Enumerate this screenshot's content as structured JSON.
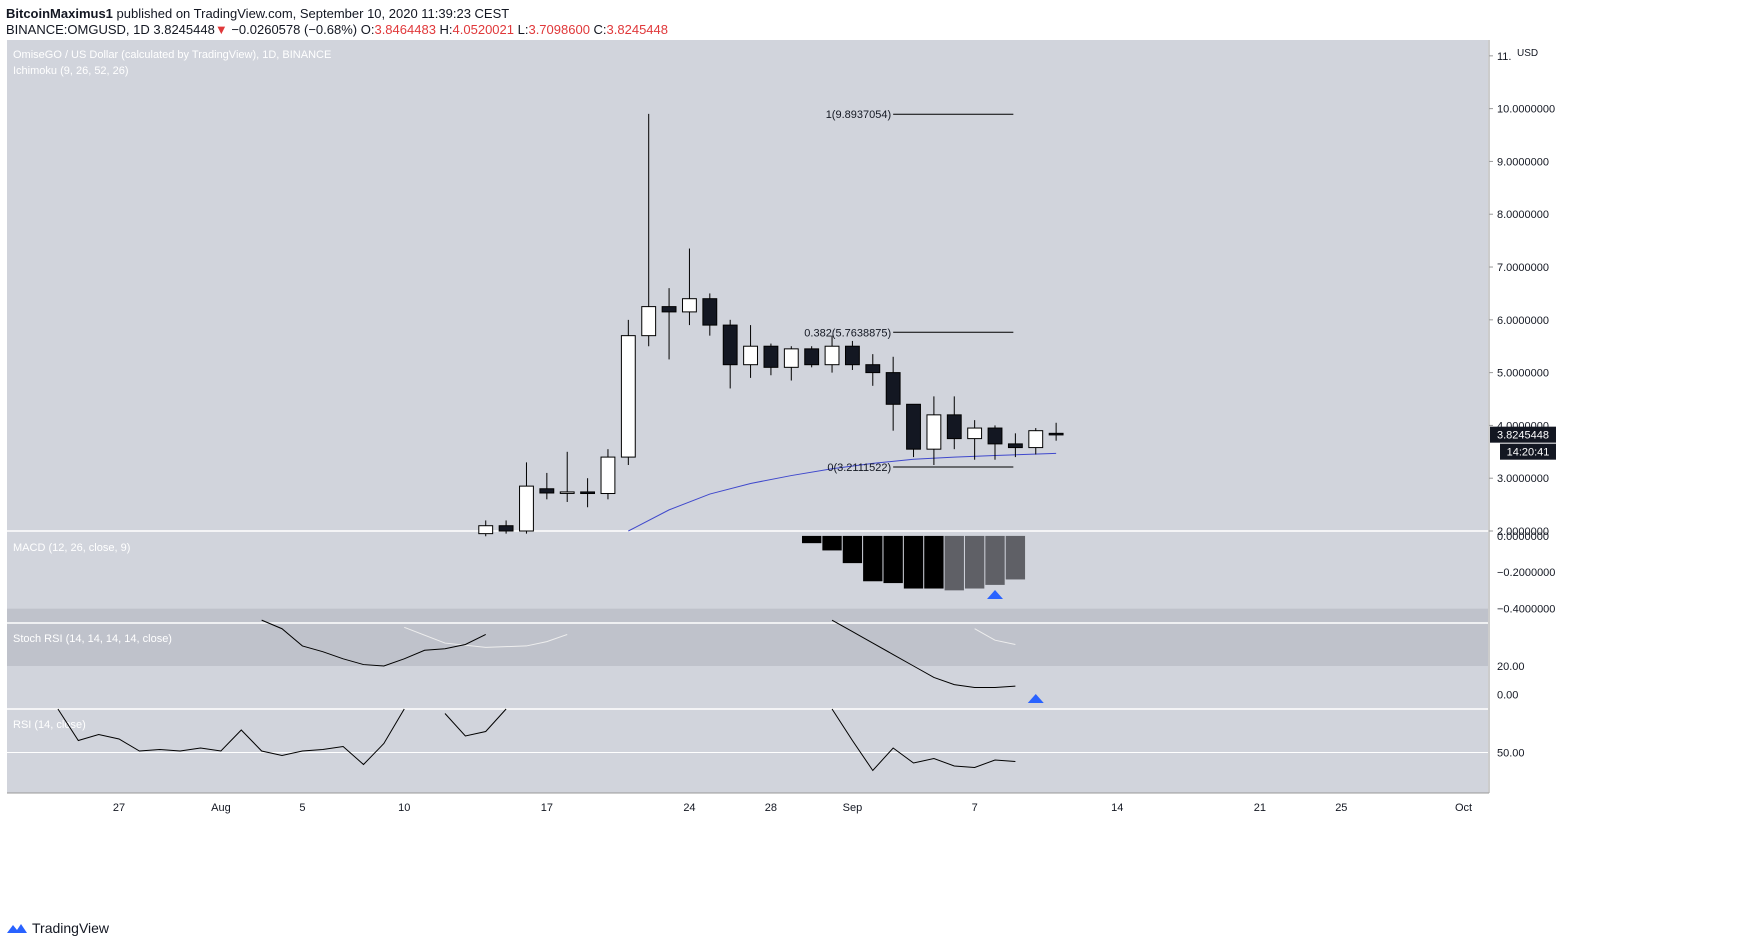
{
  "header": {
    "author": "BitcoinMaximus1",
    "published": "published on TradingView.com, September 10, 2020 11:39:23 CEST",
    "symbol": "BINANCE:OMGUSD, 1D",
    "last": "3.8245448",
    "arrow": "▼",
    "change": "−0.0260578 (−0.68%)",
    "o_label": "O:",
    "o": "3.8464483",
    "h_label": "H:",
    "h": "4.0520021",
    "l_label": "L:",
    "l": "3.7098600",
    "c_label": "C:",
    "c": "3.8245448"
  },
  "footer": {
    "brand": "TradingView",
    "icon": "tradingview-logo-icon"
  },
  "colors": {
    "pane_bg": "#d1d4dc",
    "up": "#ffffff",
    "down": "#131722",
    "ma": "#3f48cc",
    "marker": "#2962ff"
  },
  "chart_data": {
    "type": "candlestick",
    "title": "OmiseGO / US Dollar (calculated by TradingView), 1D, BINANCE",
    "indicator": "Ichimoku (9, 26, 52, 26)",
    "currency": "USD",
    "price_ticks": [
      "2.0000000",
      "3.0000000",
      "4.0000000",
      "5.0000000",
      "6.0000000",
      "7.0000000",
      "8.0000000",
      "9.0000000",
      "10.0000000",
      "11."
    ],
    "price_range": [
      2,
      11.3
    ],
    "x_tick_labels": [
      {
        "label": "27",
        "day": 27
      },
      {
        "label": "Aug",
        "day": 32
      },
      {
        "label": "5",
        "day": 36
      },
      {
        "label": "10",
        "day": 41
      },
      {
        "label": "17",
        "day": 48
      },
      {
        "label": "24",
        "day": 55
      },
      {
        "label": "28",
        "day": 59
      },
      {
        "label": "Sep",
        "day": 63
      },
      {
        "label": "7",
        "day": 69
      },
      {
        "label": "14",
        "day": 76
      },
      {
        "label": "21",
        "day": 83
      },
      {
        "label": "25",
        "day": 87
      },
      {
        "label": "Oct",
        "day": 93
      }
    ],
    "x_day_range": [
      21.5,
      94.2
    ],
    "candles": [
      {
        "day": 45,
        "o": 1.95,
        "h": 2.2,
        "l": 1.9,
        "c": 2.1
      },
      {
        "day": 46,
        "o": 2.1,
        "h": 2.2,
        "l": 1.95,
        "c": 2.0
      },
      {
        "day": 47,
        "o": 2.0,
        "h": 3.3,
        "l": 1.95,
        "c": 2.85
      },
      {
        "day": 48,
        "o": 2.8,
        "h": 3.1,
        "l": 2.6,
        "c": 2.72
      },
      {
        "day": 49,
        "o": 2.72,
        "h": 3.5,
        "l": 2.55,
        "c": 2.74
      },
      {
        "day": 50,
        "o": 2.74,
        "h": 3.0,
        "l": 2.45,
        "c": 2.71
      },
      {
        "day": 51,
        "o": 2.71,
        "h": 3.55,
        "l": 2.6,
        "c": 3.4
      },
      {
        "day": 52,
        "o": 3.4,
        "h": 6.0,
        "l": 3.25,
        "c": 5.7
      },
      {
        "day": 53,
        "o": 5.7,
        "h": 9.9,
        "l": 5.5,
        "c": 6.25
      },
      {
        "day": 54,
        "o": 6.25,
        "h": 6.6,
        "l": 5.25,
        "c": 6.15
      },
      {
        "day": 55,
        "o": 6.15,
        "h": 7.35,
        "l": 5.9,
        "c": 6.4
      },
      {
        "day": 56,
        "o": 6.4,
        "h": 6.5,
        "l": 5.7,
        "c": 5.9
      },
      {
        "day": 57,
        "o": 5.9,
        "h": 6.0,
        "l": 4.7,
        "c": 5.15
      },
      {
        "day": 58,
        "o": 5.15,
        "h": 5.9,
        "l": 4.9,
        "c": 5.5
      },
      {
        "day": 59,
        "o": 5.5,
        "h": 5.55,
        "l": 4.95,
        "c": 5.1
      },
      {
        "day": 60,
        "o": 5.1,
        "h": 5.5,
        "l": 4.85,
        "c": 5.45
      },
      {
        "day": 61,
        "o": 5.45,
        "h": 5.5,
        "l": 5.1,
        "c": 5.15
      },
      {
        "day": 62,
        "o": 5.15,
        "h": 5.7,
        "l": 5.0,
        "c": 5.5
      },
      {
        "day": 63,
        "o": 5.5,
        "h": 5.6,
        "l": 5.05,
        "c": 5.15
      },
      {
        "day": 64,
        "o": 5.15,
        "h": 5.35,
        "l": 4.75,
        "c": 5.0
      },
      {
        "day": 65,
        "o": 5.0,
        "h": 5.3,
        "l": 3.9,
        "c": 4.4
      },
      {
        "day": 66,
        "o": 4.4,
        "h": 4.4,
        "l": 3.4,
        "c": 3.55
      },
      {
        "day": 67,
        "o": 3.55,
        "h": 4.55,
        "l": 3.25,
        "c": 4.2
      },
      {
        "day": 68,
        "o": 4.2,
        "h": 4.55,
        "l": 3.55,
        "c": 3.75
      },
      {
        "day": 69,
        "o": 3.75,
        "h": 4.1,
        "l": 3.35,
        "c": 3.95
      },
      {
        "day": 70,
        "o": 3.95,
        "h": 4.0,
        "l": 3.35,
        "c": 3.65
      },
      {
        "day": 71,
        "o": 3.65,
        "h": 3.85,
        "l": 3.4,
        "c": 3.58
      },
      {
        "day": 72,
        "o": 3.58,
        "h": 3.95,
        "l": 3.45,
        "c": 3.9
      },
      {
        "day": 73,
        "o": 3.85,
        "h": 4.05,
        "l": 3.71,
        "c": 3.82
      }
    ],
    "ma_line": [
      {
        "day": 52,
        "v": 2.0
      },
      {
        "day": 54,
        "v": 2.4
      },
      {
        "day": 56,
        "v": 2.7
      },
      {
        "day": 58,
        "v": 2.9
      },
      {
        "day": 60,
        "v": 3.05
      },
      {
        "day": 62,
        "v": 3.18
      },
      {
        "day": 64,
        "v": 3.28
      },
      {
        "day": 66,
        "v": 3.36
      },
      {
        "day": 68,
        "v": 3.4
      },
      {
        "day": 70,
        "v": 3.43
      },
      {
        "day": 73,
        "v": 3.47
      }
    ],
    "fibonacci": {
      "levels": [
        {
          "label": "1(9.8937054)",
          "value": 9.8937054
        },
        {
          "label": "0.382(5.7638875)",
          "value": 5.7638875
        },
        {
          "label": "0(3.2111522)",
          "value": 3.2111522
        }
      ],
      "day_range": [
        65,
        70.9
      ]
    },
    "last_price_label": "3.8245448",
    "countdown_label": "14:20:41",
    "macd": {
      "title": "MACD (12, 26, close, 9)",
      "ticks": [
        "0.0000000",
        "−0.2000000",
        "−0.4000000"
      ],
      "range": [
        -0.48,
        0.005
      ],
      "histogram": [
        {
          "day": 61,
          "v": -0.04
        },
        {
          "day": 62,
          "v": -0.08
        },
        {
          "day": 63,
          "v": -0.15
        },
        {
          "day": 64,
          "v": -0.25
        },
        {
          "day": 65,
          "v": -0.26
        },
        {
          "day": 66,
          "v": -0.29
        },
        {
          "day": 67,
          "v": -0.29
        },
        {
          "day": 68,
          "v": -0.3
        },
        {
          "day": 69,
          "v": -0.29
        },
        {
          "day": 70,
          "v": -0.27
        },
        {
          "day": 71,
          "v": -0.24
        }
      ],
      "marker_day": 70
    },
    "stoch_rsi": {
      "title": "Stoch RSI (14, 14, 14, 14, close)",
      "ticks": [
        "20.00",
        "0.00"
      ],
      "range": [
        -10,
        50
      ],
      "band": [
        20,
        60
      ],
      "k_segments": [
        [
          {
            "day": 34,
            "v": 52
          },
          {
            "day": 35,
            "v": 46
          },
          {
            "day": 36,
            "v": 34
          },
          {
            "day": 37,
            "v": 30
          },
          {
            "day": 38,
            "v": 25
          },
          {
            "day": 39,
            "v": 21
          },
          {
            "day": 40,
            "v": 20
          },
          {
            "day": 41,
            "v": 25
          },
          {
            "day": 42,
            "v": 31
          },
          {
            "day": 43,
            "v": 32
          },
          {
            "day": 44,
            "v": 35
          },
          {
            "day": 45,
            "v": 42
          }
        ],
        [
          {
            "day": 62,
            "v": 52
          },
          {
            "day": 63,
            "v": 44
          },
          {
            "day": 64,
            "v": 36
          },
          {
            "day": 65,
            "v": 28
          },
          {
            "day": 66,
            "v": 20
          },
          {
            "day": 67,
            "v": 12
          },
          {
            "day": 68,
            "v": 7
          },
          {
            "day": 69,
            "v": 5
          },
          {
            "day": 70,
            "v": 5
          },
          {
            "day": 71,
            "v": 6
          }
        ]
      ],
      "d_segments": [
        [
          {
            "day": 41,
            "v": 47
          },
          {
            "day": 43,
            "v": 36
          },
          {
            "day": 45,
            "v": 33
          },
          {
            "day": 47,
            "v": 34
          },
          {
            "day": 48,
            "v": 37
          },
          {
            "day": 49,
            "v": 42
          }
        ],
        [
          {
            "day": 69,
            "v": 46
          },
          {
            "day": 70,
            "v": 38
          },
          {
            "day": 71,
            "v": 35
          }
        ]
      ],
      "marker_day": 72
    },
    "rsi": {
      "title": "RSI (14, close)",
      "ticks": [
        "50.00"
      ],
      "range": [
        23,
        79
      ],
      "level": 50,
      "segments": [
        [
          {
            "day": 24,
            "v": 83
          },
          {
            "day": 25,
            "v": 58
          },
          {
            "day": 26,
            "v": 62
          },
          {
            "day": 27,
            "v": 59
          },
          {
            "day": 28,
            "v": 51
          },
          {
            "day": 29,
            "v": 52
          },
          {
            "day": 30,
            "v": 51
          },
          {
            "day": 31,
            "v": 53
          },
          {
            "day": 32,
            "v": 51
          },
          {
            "day": 33,
            "v": 65
          },
          {
            "day": 34,
            "v": 51
          },
          {
            "day": 35,
            "v": 48
          },
          {
            "day": 36,
            "v": 51
          },
          {
            "day": 37,
            "v": 52
          },
          {
            "day": 38,
            "v": 54
          },
          {
            "day": 39,
            "v": 42
          },
          {
            "day": 40,
            "v": 56
          },
          {
            "day": 41,
            "v": 81
          }
        ],
        [
          {
            "day": 43,
            "v": 76
          },
          {
            "day": 44,
            "v": 61
          },
          {
            "day": 45,
            "v": 64
          },
          {
            "day": 46,
            "v": 81
          }
        ],
        [
          {
            "day": 62,
            "v": 79
          },
          {
            "day": 63,
            "v": 58
          },
          {
            "day": 64,
            "v": 38
          },
          {
            "day": 65,
            "v": 53
          },
          {
            "day": 66,
            "v": 43
          },
          {
            "day": 67,
            "v": 46
          },
          {
            "day": 68,
            "v": 41
          },
          {
            "day": 69,
            "v": 40
          },
          {
            "day": 70,
            "v": 45
          },
          {
            "day": 71,
            "v": 44
          }
        ]
      ]
    }
  }
}
